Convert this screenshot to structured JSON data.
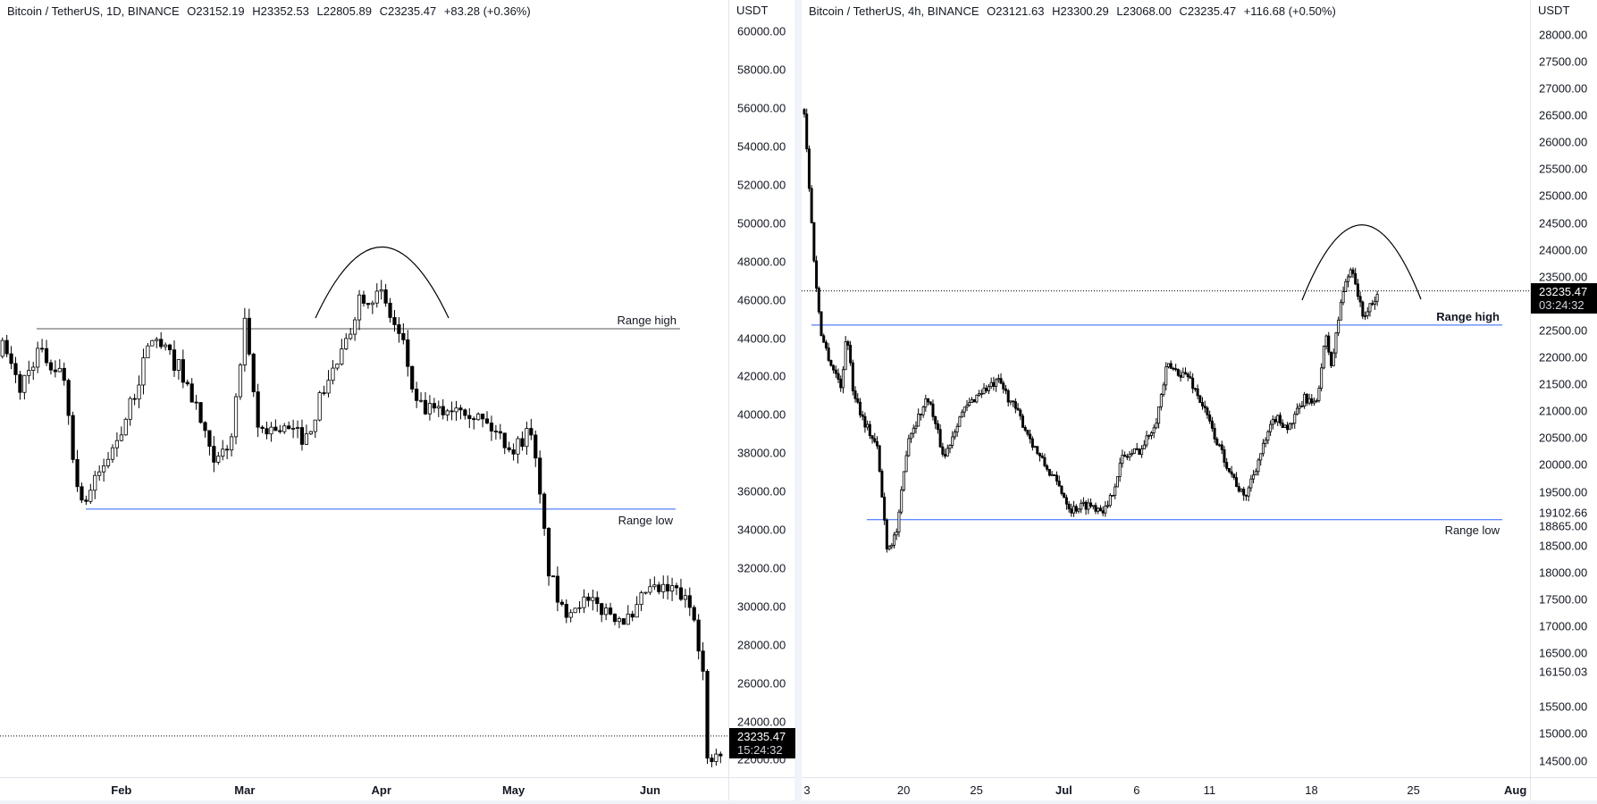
{
  "panes": [
    {
      "legend": {
        "symbol": "Bitcoin / TetherUS, 1D, BINANCE",
        "open": "O23152.19",
        "high": "H23352.53",
        "low": "L22805.89",
        "close": "C23235.47",
        "change": "+83.28 (+0.36%)"
      },
      "currency": "USDT",
      "price_ticks": [
        "60000.00",
        "58000.00",
        "56000.00",
        "54000.00",
        "52000.00",
        "50000.00",
        "48000.00",
        "46000.00",
        "44000.00",
        "42000.00",
        "40000.00",
        "38000.00",
        "36000.00",
        "34000.00",
        "32000.00",
        "30000.00",
        "28000.00",
        "26000.00",
        "24000.00",
        "22000.00"
      ],
      "last_price": "23235.47",
      "countdown": "15:24:32",
      "range_high_label": "Range high",
      "range_low_label": "Range low",
      "time_ticks": [
        {
          "label": "Feb",
          "day": 31,
          "bold": true
        },
        {
          "label": "Mar",
          "day": 59,
          "bold": true
        },
        {
          "label": "Apr",
          "day": 90,
          "bold": true
        },
        {
          "label": "May",
          "day": 120,
          "bold": true
        },
        {
          "label": "Jun",
          "day": 151,
          "bold": true
        }
      ]
    },
    {
      "legend": {
        "symbol": "Bitcoin / TetherUS, 4h, BINANCE",
        "open": "O23121.63",
        "high": "H23300.29",
        "low": "L23068.00",
        "close": "C23235.47",
        "change": "+116.68 (+0.50%)"
      },
      "currency": "USDT",
      "price_ticks": [
        "28000.00",
        "27500.00",
        "27000.00",
        "26500.00",
        "26000.00",
        "25500.00",
        "25000.00",
        "24500.00",
        "24000.00",
        "23500.00",
        "22500.00",
        "22000.00",
        "21500.00",
        "21000.00",
        "20500.00",
        "20000.00",
        "19500.00",
        "18500.00",
        "18000.00",
        "17500.00",
        "17000.00",
        "16500.00",
        "15500.00",
        "15000.00",
        "14500.00"
      ],
      "extra_price_labels": [
        "19102.66",
        "18865.00",
        "16150.03"
      ],
      "last_price": "23235.47",
      "countdown": "03:24:32",
      "range_high_label": "Range high",
      "range_low_label": "Range low",
      "time_ticks": [
        {
          "label": "3",
          "day": 0,
          "bold": false
        },
        {
          "label": "20",
          "day": 7,
          "bold": false
        },
        {
          "label": "25",
          "day": 12,
          "bold": false
        },
        {
          "label": "Jul",
          "day": 18,
          "bold": true
        },
        {
          "label": "6",
          "day": 23,
          "bold": false
        },
        {
          "label": "11",
          "day": 28,
          "bold": false
        },
        {
          "label": "18",
          "day": 35,
          "bold": false
        },
        {
          "label": "25",
          "day": 42,
          "bold": false
        },
        {
          "label": "Aug",
          "day": 49,
          "bold": true
        }
      ]
    }
  ],
  "chart_data": [
    {
      "type": "candlestick",
      "title": "Bitcoin / TetherUS, 1D, BINANCE",
      "ylabel": "USDT",
      "ylim": [
        21000,
        61000
      ],
      "x_unit": "days since Jan 1",
      "range_high": 44490,
      "range_low": 35080,
      "last_price": 23235.47,
      "close_keypoints": [
        [
          4,
          43500
        ],
        [
          8,
          41400
        ],
        [
          12,
          43300
        ],
        [
          18,
          42000
        ],
        [
          21,
          36100
        ],
        [
          23,
          35600
        ],
        [
          29,
          38200
        ],
        [
          33,
          40400
        ],
        [
          38,
          44100
        ],
        [
          44,
          42500
        ],
        [
          48,
          40400
        ],
        [
          52,
          37200
        ],
        [
          56,
          38800
        ],
        [
          59,
          44600
        ],
        [
          62,
          39300
        ],
        [
          67,
          39300
        ],
        [
          73,
          38800
        ],
        [
          77,
          41400
        ],
        [
          82,
          43600
        ],
        [
          85,
          46200
        ],
        [
          90,
          46200
        ],
        [
          95,
          43600
        ],
        [
          98,
          40400
        ],
        [
          103,
          40100
        ],
        [
          108,
          40600
        ],
        [
          115,
          39300
        ],
        [
          120,
          38200
        ],
        [
          124,
          39300
        ],
        [
          126,
          35600
        ],
        [
          128,
          31900
        ],
        [
          131,
          29700
        ],
        [
          135,
          30300
        ],
        [
          142,
          29700
        ],
        [
          147,
          29200
        ],
        [
          150,
          30800
        ],
        [
          157,
          30800
        ],
        [
          161,
          29700
        ],
        [
          163,
          26500
        ],
        [
          164,
          21800
        ],
        [
          167,
          22200
        ]
      ],
      "candles_per_day": 1
    },
    {
      "type": "candlestick",
      "title": "Bitcoin / TetherUS, 4h, BINANCE",
      "ylabel": "USDT",
      "ylim": [
        14200,
        28300
      ],
      "x_unit": "days since Jun 13",
      "range_high": 22600,
      "range_low": 18980,
      "last_price": 23235.47,
      "close_keypoints": [
        [
          0,
          26560
        ],
        [
          0.5,
          24480
        ],
        [
          0.8,
          23340
        ],
        [
          1.2,
          22390
        ],
        [
          1.9,
          21830
        ],
        [
          2.6,
          21450
        ],
        [
          2.9,
          22580
        ],
        [
          3.3,
          21450
        ],
        [
          4,
          20880
        ],
        [
          5,
          20310
        ],
        [
          5.7,
          18420
        ],
        [
          6.4,
          18800
        ],
        [
          7.1,
          20500
        ],
        [
          8.5,
          21260
        ],
        [
          9.6,
          20120
        ],
        [
          10.6,
          20880
        ],
        [
          12,
          21350
        ],
        [
          13.4,
          21540
        ],
        [
          14.8,
          20880
        ],
        [
          16.2,
          20120
        ],
        [
          17.6,
          19550
        ],
        [
          18.3,
          19170
        ],
        [
          19.4,
          19270
        ],
        [
          20.8,
          19170
        ],
        [
          21.8,
          20120
        ],
        [
          23.2,
          20310
        ],
        [
          24.2,
          20880
        ],
        [
          24.9,
          21830
        ],
        [
          26.4,
          21640
        ],
        [
          27.4,
          21070
        ],
        [
          28.5,
          20310
        ],
        [
          29.5,
          19740
        ],
        [
          30.2,
          19360
        ],
        [
          31.2,
          20120
        ],
        [
          32.3,
          20880
        ],
        [
          33.3,
          20690
        ],
        [
          34.4,
          21260
        ],
        [
          35.1,
          21070
        ],
        [
          35.8,
          22390
        ],
        [
          36.2,
          21830
        ],
        [
          36.9,
          23150
        ],
        [
          37.6,
          23720
        ],
        [
          38.3,
          22770
        ],
        [
          39,
          22960
        ],
        [
          39.4,
          23190
        ]
      ],
      "candles_per_day": 6
    }
  ]
}
